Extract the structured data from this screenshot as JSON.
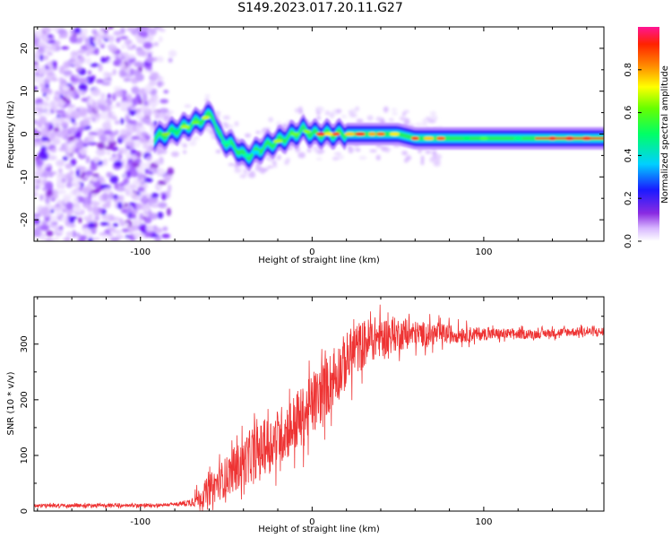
{
  "title": "S149.2023.017.20.11.G27",
  "chart_data": [
    {
      "type": "heatmap",
      "xlabel": "Height of straight line (km)",
      "ylabel": "Frequency (Hz)",
      "xlim": [
        -162,
        170
      ],
      "ylim": [
        -25,
        25
      ],
      "xticks": [
        -100,
        0,
        100
      ],
      "yticks": [
        -20,
        -10,
        0,
        10,
        20
      ],
      "colorbar": {
        "label": "Normalized spectral amplitude",
        "range": [
          0,
          1
        ],
        "ticks": [
          "0.0",
          "0.2",
          "0.4",
          "0.6",
          "0.8"
        ]
      },
      "signal_ridge": {
        "x": [
          -92,
          -85,
          -78,
          -72,
          -66,
          -61,
          -58,
          -55,
          -50,
          -45,
          -40,
          -36,
          -32,
          -28,
          -22,
          -16,
          -10,
          -5,
          0,
          5,
          10,
          20,
          30,
          40,
          50,
          60,
          70,
          80,
          100,
          120,
          140,
          170
        ],
        "y": [
          -1,
          0,
          1,
          2,
          3,
          4,
          5,
          0,
          -2,
          -3,
          -5,
          -5,
          -4,
          -3,
          -2,
          -1,
          0,
          1,
          0,
          0,
          0,
          0,
          0,
          0,
          0,
          -1,
          -1,
          -1,
          -1,
          -1,
          -1,
          -1
        ]
      }
    },
    {
      "type": "line",
      "xlabel": "Height of straight line (km)",
      "ylabel": "SNR (10 * v/v)",
      "xlim": [
        -162,
        170
      ],
      "ylim": [
        0,
        385
      ],
      "xticks": [
        -100,
        0,
        100
      ],
      "yticks": [
        0,
        100,
        200,
        300
      ],
      "color": "#ee3333",
      "trend": {
        "x": [
          -162,
          -140,
          -100,
          -80,
          -72,
          -65,
          -55,
          -45,
          -35,
          -25,
          -15,
          -5,
          5,
          15,
          25,
          35,
          50,
          70,
          90,
          110,
          130,
          150,
          170
        ],
        "y": [
          10,
          10,
          10,
          12,
          15,
          25,
          50,
          75,
          100,
          120,
          145,
          170,
          210,
          250,
          290,
          310,
          318,
          318,
          318,
          318,
          318,
          322,
          322
        ]
      },
      "noise": {
        "x": [
          -162,
          -80,
          -72,
          -60,
          -40,
          -20,
          0,
          20,
          40,
          60,
          100,
          130,
          170
        ],
        "y": [
          4,
          4,
          8,
          35,
          55,
          65,
          70,
          65,
          45,
          30,
          14,
          10,
          10
        ]
      }
    }
  ]
}
